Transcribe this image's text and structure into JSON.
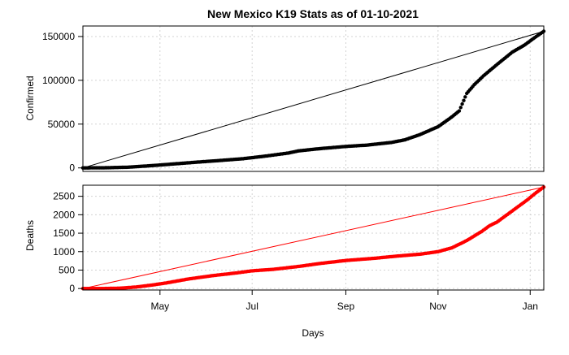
{
  "chart_data": {
    "type": "scatter",
    "title": "New Mexico K19 Stats as of 01-10-2021",
    "xlabel": "Days",
    "x_axis": {
      "type": "date",
      "range": [
        "2020-03-11",
        "2021-01-10"
      ],
      "ticks": [
        {
          "date": "2020-05-01",
          "label": "May"
        },
        {
          "date": "2020-07-01",
          "label": "Jul"
        },
        {
          "date": "2020-09-01",
          "label": "Sep"
        },
        {
          "date": "2020-11-01",
          "label": "Nov"
        },
        {
          "date": "2021-01-01",
          "label": "Jan"
        }
      ]
    },
    "grid": true,
    "panels": [
      {
        "ylabel": "Confirmed",
        "color": "#000000",
        "ylim": [
          -4000,
          162000
        ],
        "yticks": [
          0,
          50000,
          100000,
          150000
        ],
        "yticklabels": [
          "0",
          "50000",
          "100000",
          "150000"
        ],
        "reference_line": [
          [
            "2020-03-11",
            0
          ],
          [
            "2021-01-10",
            156000
          ]
        ],
        "series": [
          {
            "name": "Confirmed",
            "points": [
              [
                "2020-03-11",
                0
              ],
              [
                "2020-03-25",
                100
              ],
              [
                "2020-04-10",
                800
              ],
              [
                "2020-04-25",
                2500
              ],
              [
                "2020-05-10",
                4500
              ],
              [
                "2020-05-25",
                6500
              ],
              [
                "2020-06-10",
                8500
              ],
              [
                "2020-06-25",
                10500
              ],
              [
                "2020-07-10",
                13500
              ],
              [
                "2020-07-25",
                17000
              ],
              [
                "2020-08-01",
                19500
              ],
              [
                "2020-08-15",
                22000
              ],
              [
                "2020-09-01",
                24500
              ],
              [
                "2020-09-15",
                26000
              ],
              [
                "2020-10-01",
                29000
              ],
              [
                "2020-10-10",
                32000
              ],
              [
                "2020-10-20",
                38000
              ],
              [
                "2020-11-01",
                47000
              ],
              [
                "2020-11-10",
                58000
              ],
              [
                "2020-11-15",
                65000
              ],
              [
                "2020-11-20",
                85000
              ],
              [
                "2020-11-25",
                95000
              ],
              [
                "2020-12-01",
                105000
              ],
              [
                "2020-12-10",
                118000
              ],
              [
                "2020-12-20",
                132000
              ],
              [
                "2020-12-28",
                140000
              ],
              [
                "2021-01-05",
                150000
              ],
              [
                "2021-01-10",
                156000
              ]
            ]
          }
        ]
      },
      {
        "ylabel": "Deaths",
        "color": "#ff0000",
        "ylim": [
          -40,
          2800
        ],
        "yticks": [
          0,
          500,
          1000,
          1500,
          2000,
          2500
        ],
        "yticklabels": [
          "0",
          "500",
          "1000",
          "1500",
          "2000",
          "2500"
        ],
        "reference_line": [
          [
            "2020-03-11",
            0
          ],
          [
            "2021-01-10",
            2750
          ]
        ],
        "series": [
          {
            "name": "Deaths",
            "points": [
              [
                "2020-03-11",
                0
              ],
              [
                "2020-03-25",
                0
              ],
              [
                "2020-04-05",
                10
              ],
              [
                "2020-04-15",
                40
              ],
              [
                "2020-04-25",
                90
              ],
              [
                "2020-05-05",
                150
              ],
              [
                "2020-05-20",
                260
              ],
              [
                "2020-06-05",
                350
              ],
              [
                "2020-06-20",
                420
              ],
              [
                "2020-07-01",
                480
              ],
              [
                "2020-07-15",
                520
              ],
              [
                "2020-08-01",
                600
              ],
              [
                "2020-08-15",
                680
              ],
              [
                "2020-09-01",
                760
              ],
              [
                "2020-09-20",
                820
              ],
              [
                "2020-10-05",
                880
              ],
              [
                "2020-10-20",
                930
              ],
              [
                "2020-11-01",
                1000
              ],
              [
                "2020-11-10",
                1100
              ],
              [
                "2020-11-20",
                1300
              ],
              [
                "2020-11-30",
                1550
              ],
              [
                "2020-12-05",
                1700
              ],
              [
                "2020-12-10",
                1800
              ],
              [
                "2020-12-20",
                2100
              ],
              [
                "2020-12-30",
                2400
              ],
              [
                "2021-01-05",
                2600
              ],
              [
                "2021-01-10",
                2750
              ]
            ]
          }
        ]
      }
    ]
  }
}
